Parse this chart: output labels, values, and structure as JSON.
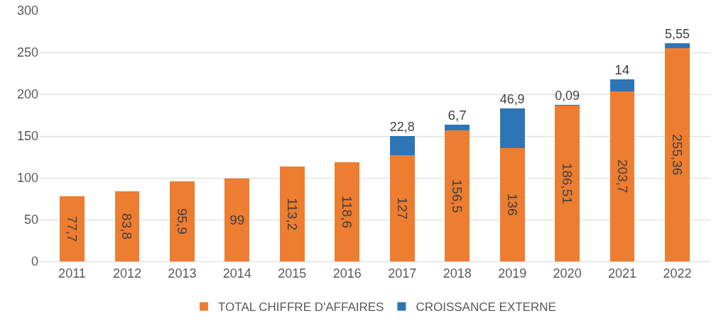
{
  "chart_data": {
    "type": "bar",
    "stacked": true,
    "categories": [
      "2011",
      "2012",
      "2013",
      "2014",
      "2015",
      "2016",
      "2017",
      "2018",
      "2019",
      "2020",
      "2021",
      "2022"
    ],
    "series": [
      {
        "name": "TOTAL CHIFFRE D'AFFAIRES",
        "color": "#ed7d31",
        "values": [
          77.7,
          83.8,
          95.9,
          99,
          113.2,
          118.6,
          127,
          156.5,
          136,
          186.51,
          203.7,
          255.36
        ],
        "value_labels": [
          "77,7",
          "83,8",
          "95,9",
          "99",
          "113,2",
          "118,6",
          "127",
          "156,5",
          "136",
          "186,51",
          "203,7",
          "255,36"
        ]
      },
      {
        "name": "CROISSANCE EXTERNE",
        "color": "#2e75b6",
        "values": [
          null,
          null,
          null,
          null,
          null,
          null,
          22.8,
          6.7,
          46.9,
          0.09,
          14,
          5.55
        ],
        "value_labels": [
          null,
          null,
          null,
          null,
          null,
          null,
          "22,8",
          "6,7",
          "46,9",
          "0,09",
          "14",
          "5,55"
        ]
      }
    ],
    "ylim": [
      0,
      300
    ],
    "yticks": [
      0,
      50,
      100,
      150,
      200,
      250,
      300
    ],
    "grid": "y",
    "legend": "bottom"
  }
}
